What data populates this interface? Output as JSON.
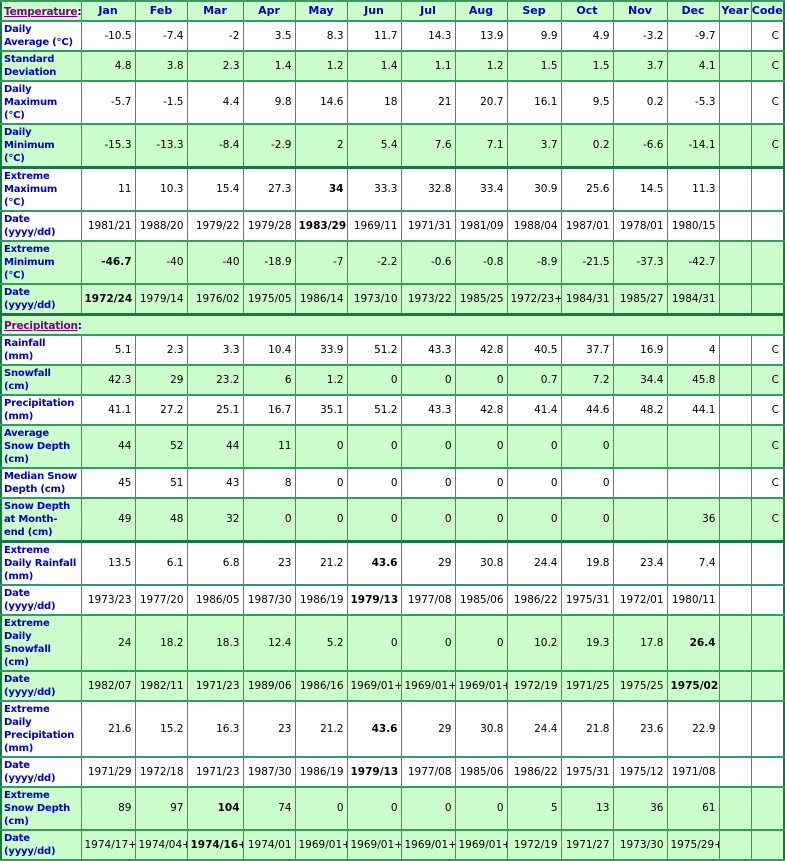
{
  "colors": {
    "row_green": "#ccffcc",
    "row_white": "#ffffff",
    "grid_green": "#2e9e63",
    "grid_dark_green": "#17764a",
    "label_blue": "#0000cc",
    "link_purple": "#800080",
    "data_black": "#000000"
  },
  "header": {
    "temperature_link": "Temperature",
    "colon": ":",
    "months": [
      "Jan",
      "Feb",
      "Mar",
      "Apr",
      "May",
      "Jun",
      "Jul",
      "Aug",
      "Sep",
      "Oct",
      "Nov",
      "Dec"
    ],
    "year_label": "Year",
    "code_label": "Code"
  },
  "rows": [
    {
      "label": "Daily Average (°C)",
      "shade": false,
      "thick": false,
      "bold": [],
      "values": [
        "-10.5",
        "-7.4",
        "-2",
        "3.5",
        "8.3",
        "11.7",
        "14.3",
        "13.9",
        "9.9",
        "4.9",
        "-3.2",
        "-9.7"
      ],
      "year": "",
      "code": "C"
    },
    {
      "label": "Standard Deviation",
      "shade": true,
      "thick": false,
      "bold": [],
      "values": [
        "4.8",
        "3.8",
        "2.3",
        "1.4",
        "1.2",
        "1.4",
        "1.1",
        "1.2",
        "1.5",
        "1.5",
        "3.7",
        "4.1"
      ],
      "year": "",
      "code": "C"
    },
    {
      "label": "Daily Maximum (°C)",
      "shade": false,
      "thick": false,
      "bold": [],
      "values": [
        "-5.7",
        "-1.5",
        "4.4",
        "9.8",
        "14.6",
        "18",
        "21",
        "20.7",
        "16.1",
        "9.5",
        "0.2",
        "-5.3"
      ],
      "year": "",
      "code": "C"
    },
    {
      "label": "Daily Minimum (°C)",
      "shade": true,
      "thick": true,
      "bold": [],
      "values": [
        "-15.3",
        "-13.3",
        "-8.4",
        "-2.9",
        "2",
        "5.4",
        "7.6",
        "7.1",
        "3.7",
        "0.2",
        "-6.6",
        "-14.1"
      ],
      "year": "",
      "code": "C"
    },
    {
      "label": "Extreme Maximum (°C)",
      "shade": false,
      "thick": false,
      "bold": [
        4
      ],
      "values": [
        "11",
        "10.3",
        "15.4",
        "27.3",
        "34",
        "33.3",
        "32.8",
        "33.4",
        "30.9",
        "25.6",
        "14.5",
        "11.3"
      ],
      "year": "",
      "code": ""
    },
    {
      "label": "Date (yyyy/dd)",
      "shade": false,
      "thick": false,
      "bold": [
        4
      ],
      "values": [
        "1981/21",
        "1988/20",
        "1979/22",
        "1979/28",
        "1983/29",
        "1969/11",
        "1971/31",
        "1981/09",
        "1988/04",
        "1987/01",
        "1978/01",
        "1980/15"
      ],
      "year": "",
      "code": ""
    },
    {
      "label": "Extreme Minimum (°C)",
      "shade": true,
      "thick": false,
      "bold": [
        0
      ],
      "values": [
        "-46.7",
        "-40",
        "-40",
        "-18.9",
        "-7",
        "-2.2",
        "-0.6",
        "-0.8",
        "-8.9",
        "-21.5",
        "-37.3",
        "-42.7"
      ],
      "year": "",
      "code": ""
    },
    {
      "label": "Date (yyyy/dd)",
      "shade": true,
      "thick": true,
      "bold": [
        0
      ],
      "values": [
        "1972/24",
        "1979/14",
        "1976/02",
        "1975/05",
        "1986/14",
        "1973/10",
        "1973/22",
        "1985/25",
        "1972/23+",
        "1984/31",
        "1985/27",
        "1984/31"
      ],
      "year": "",
      "code": ""
    },
    {
      "section": true,
      "shade": true,
      "thick": false,
      "link": "Precipitation",
      "colon": ":"
    },
    {
      "label": "Rainfall (mm)",
      "shade": false,
      "thick": false,
      "bold": [],
      "values": [
        "5.1",
        "2.3",
        "3.3",
        "10.4",
        "33.9",
        "51.2",
        "43.3",
        "42.8",
        "40.5",
        "37.7",
        "16.9",
        "4"
      ],
      "year": "",
      "code": "C"
    },
    {
      "label": "Snowfall (cm)",
      "shade": true,
      "thick": false,
      "bold": [],
      "values": [
        "42.3",
        "29",
        "23.2",
        "6",
        "1.2",
        "0",
        "0",
        "0",
        "0.7",
        "7.2",
        "34.4",
        "45.8"
      ],
      "year": "",
      "code": "C"
    },
    {
      "label": "Precipitation (mm)",
      "shade": false,
      "thick": false,
      "bold": [],
      "values": [
        "41.1",
        "27.2",
        "25.1",
        "16.7",
        "35.1",
        "51.2",
        "43.3",
        "42.8",
        "41.4",
        "44.6",
        "48.2",
        "44.1"
      ],
      "year": "",
      "code": "C"
    },
    {
      "label": "Average Snow Depth (cm)",
      "shade": true,
      "thick": false,
      "bold": [],
      "values": [
        "44",
        "52",
        "44",
        "11",
        "0",
        "0",
        "0",
        "0",
        "0",
        "0",
        "",
        ""
      ],
      "year": "",
      "code": "C"
    },
    {
      "label": "Median Snow Depth (cm)",
      "shade": false,
      "thick": false,
      "bold": [],
      "values": [
        "45",
        "51",
        "43",
        "8",
        "0",
        "0",
        "0",
        "0",
        "0",
        "0",
        "",
        ""
      ],
      "year": "",
      "code": "C"
    },
    {
      "label": "Snow Depth at Month-end (cm)",
      "shade": true,
      "thick": true,
      "bold": [],
      "values": [
        "49",
        "48",
        "32",
        "0",
        "0",
        "0",
        "0",
        "0",
        "0",
        "0",
        "",
        "36"
      ],
      "year": "",
      "code": "C"
    },
    {
      "label": "Extreme Daily Rainfall (mm)",
      "shade": false,
      "thick": false,
      "bold": [
        5
      ],
      "values": [
        "13.5",
        "6.1",
        "6.8",
        "23",
        "21.2",
        "43.6",
        "29",
        "30.8",
        "24.4",
        "19.8",
        "23.4",
        "7.4"
      ],
      "year": "",
      "code": ""
    },
    {
      "label": "Date (yyyy/dd)",
      "shade": false,
      "thick": false,
      "bold": [
        5
      ],
      "values": [
        "1973/23",
        "1977/20",
        "1986/05",
        "1987/30",
        "1986/19",
        "1979/13",
        "1977/08",
        "1985/06",
        "1986/22",
        "1975/31",
        "1972/01",
        "1980/11"
      ],
      "year": "",
      "code": ""
    },
    {
      "label": "Extreme Daily Snowfall (cm)",
      "shade": true,
      "thick": false,
      "bold": [
        11
      ],
      "values": [
        "24",
        "18.2",
        "18.3",
        "12.4",
        "5.2",
        "0",
        "0",
        "0",
        "10.2",
        "19.3",
        "17.8",
        "26.4"
      ],
      "year": "",
      "code": ""
    },
    {
      "label": "Date (yyyy/dd)",
      "shade": true,
      "thick": false,
      "bold": [
        11
      ],
      "values": [
        "1982/07",
        "1982/11",
        "1971/23",
        "1989/06",
        "1986/16",
        "1969/01+",
        "1969/01+",
        "1969/01+",
        "1972/19",
        "1971/25",
        "1975/25",
        "1975/02"
      ],
      "year": "",
      "code": ""
    },
    {
      "label": "Extreme Daily Precipitation (mm)",
      "shade": false,
      "thick": false,
      "bold": [
        5
      ],
      "values": [
        "21.6",
        "15.2",
        "16.3",
        "23",
        "21.2",
        "43.6",
        "29",
        "30.8",
        "24.4",
        "21.8",
        "23.6",
        "22.9"
      ],
      "year": "",
      "code": ""
    },
    {
      "label": "Date (yyyy/dd)",
      "shade": false,
      "thick": false,
      "bold": [
        5
      ],
      "values": [
        "1971/29",
        "1972/18",
        "1971/23",
        "1987/30",
        "1986/19",
        "1979/13",
        "1977/08",
        "1985/06",
        "1986/22",
        "1975/31",
        "1975/12",
        "1971/08"
      ],
      "year": "",
      "code": ""
    },
    {
      "label": "Extreme Snow Depth (cm)",
      "shade": true,
      "thick": false,
      "bold": [
        2
      ],
      "values": [
        "89",
        "97",
        "104",
        "74",
        "0",
        "0",
        "0",
        "0",
        "5",
        "13",
        "36",
        "61"
      ],
      "year": "",
      "code": ""
    },
    {
      "label": "Date (yyyy/dd)",
      "shade": true,
      "thick": false,
      "bold": [
        2
      ],
      "values": [
        "1974/17+",
        "1974/04+",
        "1974/16+",
        "1974/01",
        "1969/01+",
        "1969/01+",
        "1969/01+",
        "1969/01+",
        "1972/19",
        "1971/27",
        "1973/30",
        "1975/29+"
      ],
      "year": "",
      "code": ""
    }
  ]
}
